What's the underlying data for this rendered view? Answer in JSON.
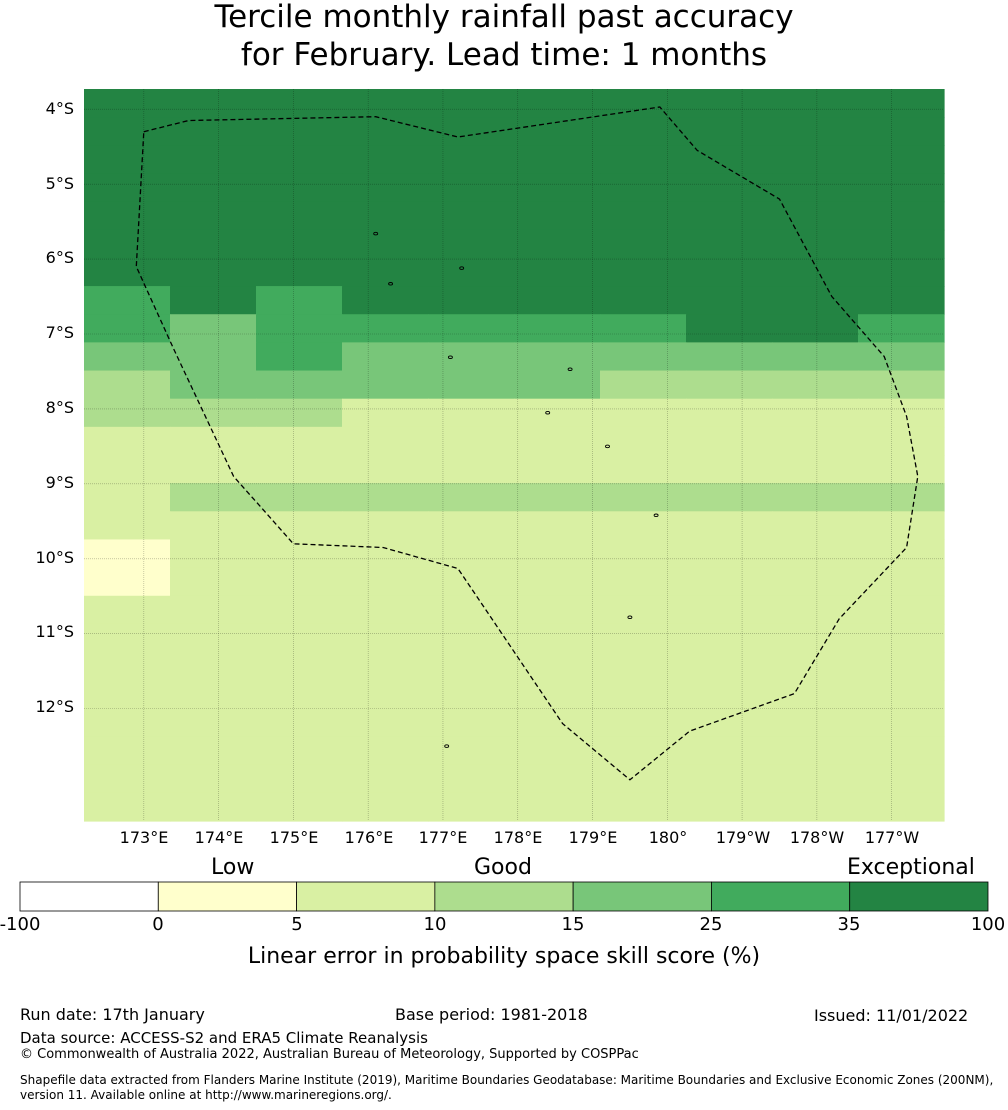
{
  "title": {
    "line1": "Tercile monthly rainfall past accuracy",
    "line2": "for February. Lead time: 1 months"
  },
  "map": {
    "lat_labels": [
      "4°S",
      "5°S",
      "6°S",
      "7°S",
      "8°S",
      "9°S",
      "10°S",
      "11°S",
      "12°S"
    ],
    "lon_labels": [
      "173°E",
      "174°E",
      "175°E",
      "176°E",
      "177°E",
      "178°E",
      "179°E",
      "180°",
      "179°W",
      "178°W",
      "177°W"
    ],
    "lon_range": [
      172.2,
      183.7
    ],
    "lat_range": [
      -3.73,
      -13.5
    ],
    "cell_size_deg": [
      0.833,
      0.556
    ],
    "grid_codes": [
      "6666666666",
      "6666666666",
      "6666666666",
      "6666666666",
      "6666666666",
      "6666666666",
      "6666666666",
      "5656666666",
      "5455555665",
      "4454444444",
      "3444443333",
      "3332222222",
      "2222222222",
      "2222222222",
      "2333333333",
      "2222222222",
      "1222222222",
      "1222222222",
      "2222222222",
      "2222222222",
      "2222222222",
      "2222222222",
      "2222222222",
      "2222222222",
      "2222222222",
      "2222222222"
    ],
    "colors": {
      "0": "#ffffff",
      "1": "#ffffcc",
      "2": "#d9f0a3",
      "3": "#addd8e",
      "4": "#78c679",
      "5": "#41ab5d",
      "6": "#238443"
    },
    "boundary_lonlat": [
      [
        173.0,
        -4.3
      ],
      [
        173.6,
        -4.15
      ],
      [
        176.1,
        -4.1
      ],
      [
        177.2,
        -4.37
      ],
      [
        179.9,
        -3.97
      ],
      [
        180.4,
        -4.55
      ],
      [
        181.5,
        -5.2
      ],
      [
        182.2,
        -6.5
      ],
      [
        182.9,
        -7.3
      ],
      [
        183.2,
        -8.1
      ],
      [
        183.35,
        -8.9
      ],
      [
        183.2,
        -9.85
      ],
      [
        182.3,
        -10.8
      ],
      [
        181.7,
        -11.8
      ],
      [
        180.3,
        -12.3
      ],
      [
        179.5,
        -12.95
      ],
      [
        178.6,
        -12.2
      ],
      [
        177.2,
        -10.13
      ],
      [
        176.2,
        -9.85
      ],
      [
        175.0,
        -9.8
      ],
      [
        174.2,
        -8.9
      ],
      [
        173.4,
        -7.2
      ],
      [
        172.9,
        -6.1
      ],
      [
        173.0,
        -4.3
      ]
    ],
    "islands_lonlat": [
      [
        176.1,
        -5.66
      ],
      [
        176.3,
        -6.33
      ],
      [
        177.25,
        -6.12
      ],
      [
        177.1,
        -7.31
      ],
      [
        178.7,
        -7.47
      ],
      [
        178.4,
        -8.05
      ],
      [
        179.2,
        -8.5
      ],
      [
        179.85,
        -9.42
      ],
      [
        179.5,
        -10.78
      ],
      [
        177.05,
        -12.5
      ]
    ]
  },
  "colorbar": {
    "categories": [
      "Low",
      "Good",
      "Exceptional"
    ],
    "ticks": [
      "-100",
      "0",
      "5",
      "10",
      "15",
      "25",
      "35",
      "100"
    ],
    "segment_colors": [
      "#ffffff",
      "#ffffcc",
      "#d9f0a3",
      "#addd8e",
      "#78c679",
      "#41ab5d",
      "#238443"
    ],
    "title": "Linear error in probability space skill score (%)"
  },
  "footer": {
    "run_date": "Run date: 17th January",
    "base_period": "Base period: 1981-2018",
    "issued": "Issued: 11/01/2022",
    "data_source": "Data source: ACCESS-S2 and ERA5 Climate Reanalysis",
    "copyright": "© Commonwealth of Australia 2022, Australian Bureau of Meteorology, Supported by COSPPac",
    "shapefile_line1": "Shapefile data extracted from Flanders Marine Institute (2019), Maritime Boundaries Geodatabase: Maritime Boundaries and Exclusive Economic Zones (200NM),",
    "shapefile_line2": "version 11. Available online at http://www.marineregions.org/."
  }
}
